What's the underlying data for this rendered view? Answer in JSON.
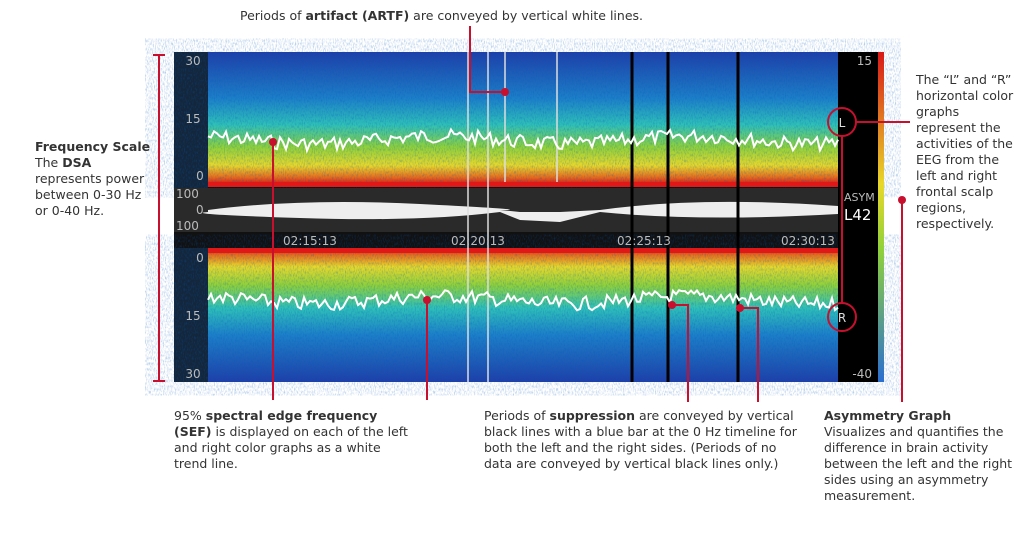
{
  "screen": {
    "top_scale": [
      "30",
      "15",
      "0"
    ],
    "emg_scale": [
      "100",
      "0",
      "100"
    ],
    "times": [
      "02:15:13",
      "02:20:13",
      "02:25:13",
      "02:30:13"
    ],
    "bottom_scale": [
      "0",
      "15",
      "30"
    ],
    "asym_top": "15",
    "asym_label": "ASYM",
    "asym_value": "L42",
    "asym_bottom": "-40",
    "left_marker": "L",
    "right_marker": "R"
  },
  "annotations": {
    "artifact": [
      "Periods of ",
      "artifact (ARTF)",
      " are conveyed by vertical white lines."
    ],
    "frequency": {
      "title": "Frequency Scale",
      "parts": [
        "The ",
        "DSA",
        " represents power between 0-30 Hz or 0-40 Hz."
      ]
    },
    "lr_graphs": "The “L” and “R” horizontal color graphs represent the activities of the EEG from the left and right frontal scalp regions, respectively.",
    "sef": [
      "95% ",
      "spectral edge frequency (SEF)",
      " is displayed on each of the left and right color graphs as a white trend line."
    ],
    "suppression": [
      "Periods of ",
      "suppression",
      " are conveyed by vertical black lines with a blue bar at the 0 Hz timeline for both the left and the right sides. (Periods of no data are conveyed by vertical black lines only.)"
    ],
    "asymmetry": {
      "title": "Asymmetry Graph",
      "text": "Visualizes and quantifies the difference in brain activity between the left and the right sides using an asymmetry measurement."
    }
  }
}
